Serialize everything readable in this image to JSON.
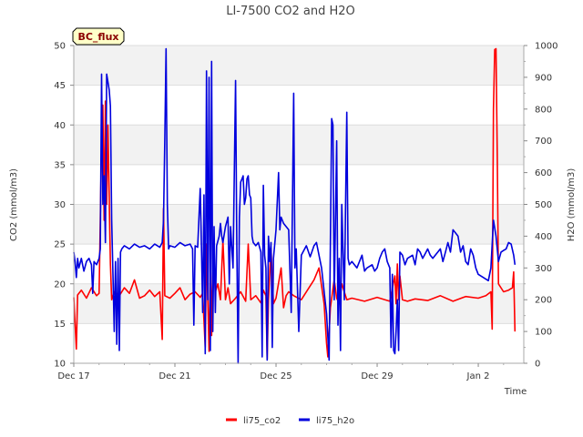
{
  "chart_data": {
    "type": "line",
    "title": "LI-7500 CO2 and H2O",
    "badge": "BC_flux",
    "xlabel": "Time",
    "ylabel_left": "CO2 (mmol/m3)",
    "ylabel_right": "H2O (mmol/m3)",
    "ylim_left": [
      10,
      50
    ],
    "ylim_right": [
      0,
      1000
    ],
    "xlim": [
      0,
      17.8
    ],
    "x_ticks": [
      {
        "value": 0,
        "label": "Dec 17"
      },
      {
        "value": 4,
        "label": "Dec 21"
      },
      {
        "value": 8,
        "label": "Dec 25"
      },
      {
        "value": 12,
        "label": "Dec 29"
      },
      {
        "value": 16,
        "label": "Jan 2"
      }
    ],
    "y_ticks_left": [
      10,
      15,
      20,
      25,
      30,
      35,
      40,
      45,
      50
    ],
    "y_ticks_right": [
      0,
      100,
      200,
      300,
      400,
      500,
      600,
      700,
      800,
      900,
      1000
    ],
    "band_color": "#f2f2f2",
    "series": [
      {
        "name": "li75_co2",
        "axis": "left",
        "color": "#ff0000",
        "points": [
          [
            0.0,
            18.3
          ],
          [
            0.1,
            11.8
          ],
          [
            0.15,
            18.6
          ],
          [
            0.3,
            19.2
          ],
          [
            0.5,
            18.2
          ],
          [
            0.7,
            19.5
          ],
          [
            0.9,
            18.5
          ],
          [
            1.0,
            18.8
          ],
          [
            1.1,
            38.0
          ],
          [
            1.15,
            42.5
          ],
          [
            1.2,
            28.0
          ],
          [
            1.25,
            43.0
          ],
          [
            1.3,
            30.0
          ],
          [
            1.35,
            40.0
          ],
          [
            1.45,
            22.5
          ],
          [
            1.5,
            18.0
          ],
          [
            1.6,
            19.0
          ],
          [
            1.8,
            18.5
          ],
          [
            2.0,
            19.5
          ],
          [
            2.2,
            18.8
          ],
          [
            2.4,
            20.5
          ],
          [
            2.6,
            18.2
          ],
          [
            2.8,
            18.5
          ],
          [
            3.0,
            19.2
          ],
          [
            3.2,
            18.4
          ],
          [
            3.4,
            19.0
          ],
          [
            3.5,
            13.0
          ],
          [
            3.55,
            29.5
          ],
          [
            3.6,
            18.5
          ],
          [
            3.8,
            18.2
          ],
          [
            4.0,
            18.8
          ],
          [
            4.2,
            19.5
          ],
          [
            4.4,
            18.0
          ],
          [
            4.6,
            18.7
          ],
          [
            4.8,
            19.0
          ],
          [
            5.0,
            18.3
          ],
          [
            5.1,
            18.8
          ],
          [
            5.2,
            12.0
          ],
          [
            5.25,
            25.0
          ],
          [
            5.35,
            11.5
          ],
          [
            5.4,
            22.0
          ],
          [
            5.45,
            13.5
          ],
          [
            5.5,
            24.0
          ],
          [
            5.6,
            19.0
          ],
          [
            5.7,
            20.0
          ],
          [
            5.8,
            18.0
          ],
          [
            5.9,
            25.5
          ],
          [
            6.0,
            18.0
          ],
          [
            6.1,
            19.5
          ],
          [
            6.2,
            17.5
          ],
          [
            6.4,
            18.2
          ],
          [
            6.6,
            19.0
          ],
          [
            6.8,
            17.8
          ],
          [
            6.9,
            25.0
          ],
          [
            7.0,
            18.0
          ],
          [
            7.2,
            18.5
          ],
          [
            7.4,
            17.6
          ],
          [
            7.5,
            19.2
          ],
          [
            7.6,
            18.5
          ],
          [
            7.65,
            10.5
          ],
          [
            7.7,
            18.0
          ],
          [
            7.8,
            24.5
          ],
          [
            7.9,
            17.5
          ],
          [
            8.0,
            18.2
          ],
          [
            8.2,
            22.0
          ],
          [
            8.3,
            17.0
          ],
          [
            8.4,
            18.5
          ],
          [
            8.5,
            19.0
          ],
          [
            8.7,
            18.5
          ],
          [
            9.0,
            18.0
          ],
          [
            9.5,
            20.5
          ],
          [
            9.7,
            22.0
          ],
          [
            9.9,
            17.5
          ],
          [
            10.0,
            12.5
          ],
          [
            10.05,
            10.8
          ],
          [
            10.15,
            17.0
          ],
          [
            10.3,
            20.5
          ],
          [
            10.4,
            18.2
          ],
          [
            10.5,
            17.5
          ],
          [
            10.6,
            20.0
          ],
          [
            10.8,
            18.0
          ],
          [
            11.0,
            18.2
          ],
          [
            11.5,
            17.8
          ],
          [
            12.0,
            18.3
          ],
          [
            12.5,
            17.8
          ],
          [
            12.7,
            21.0
          ],
          [
            12.75,
            17.5
          ],
          [
            12.8,
            22.5
          ],
          [
            12.85,
            18.0
          ],
          [
            12.9,
            21.0
          ],
          [
            13.0,
            18.0
          ],
          [
            13.2,
            17.8
          ],
          [
            13.5,
            18.1
          ],
          [
            14.0,
            17.9
          ],
          [
            14.5,
            18.5
          ],
          [
            15.0,
            17.8
          ],
          [
            15.5,
            18.4
          ],
          [
            16.0,
            18.2
          ],
          [
            16.3,
            18.5
          ],
          [
            16.5,
            19.0
          ],
          [
            16.55,
            14.3
          ],
          [
            16.6,
            42.0
          ],
          [
            16.65,
            49.5
          ],
          [
            16.7,
            49.6
          ],
          [
            16.75,
            36.0
          ],
          [
            16.8,
            20.0
          ],
          [
            17.0,
            19.0
          ],
          [
            17.2,
            19.2
          ],
          [
            17.35,
            19.5
          ],
          [
            17.4,
            21.5
          ],
          [
            17.45,
            14.0
          ]
        ]
      },
      {
        "name": "li75_h2o",
        "axis": "right",
        "color": "#0000dd",
        "points": [
          [
            0.0,
            350
          ],
          [
            0.05,
            320
          ],
          [
            0.1,
            270
          ],
          [
            0.15,
            330
          ],
          [
            0.2,
            300
          ],
          [
            0.3,
            330
          ],
          [
            0.4,
            290
          ],
          [
            0.5,
            320
          ],
          [
            0.6,
            330
          ],
          [
            0.7,
            310
          ],
          [
            0.75,
            220
          ],
          [
            0.8,
            320
          ],
          [
            0.9,
            310
          ],
          [
            1.0,
            330
          ],
          [
            1.05,
            360
          ],
          [
            1.1,
            910
          ],
          [
            1.15,
            500
          ],
          [
            1.2,
            590
          ],
          [
            1.25,
            380
          ],
          [
            1.3,
            910
          ],
          [
            1.4,
            860
          ],
          [
            1.45,
            810
          ],
          [
            1.5,
            450
          ],
          [
            1.55,
            280
          ],
          [
            1.6,
            100
          ],
          [
            1.65,
            320
          ],
          [
            1.7,
            60
          ],
          [
            1.75,
            330
          ],
          [
            1.8,
            40
          ],
          [
            1.85,
            350
          ],
          [
            1.9,
            360
          ],
          [
            2.0,
            370
          ],
          [
            2.2,
            360
          ],
          [
            2.4,
            375
          ],
          [
            2.6,
            365
          ],
          [
            2.8,
            370
          ],
          [
            3.0,
            360
          ],
          [
            3.2,
            375
          ],
          [
            3.4,
            365
          ],
          [
            3.5,
            380
          ],
          [
            3.55,
            450
          ],
          [
            3.6,
            700
          ],
          [
            3.65,
            990
          ],
          [
            3.7,
            500
          ],
          [
            3.75,
            360
          ],
          [
            3.8,
            370
          ],
          [
            4.0,
            365
          ],
          [
            4.2,
            380
          ],
          [
            4.4,
            370
          ],
          [
            4.6,
            375
          ],
          [
            4.7,
            360
          ],
          [
            4.75,
            120
          ],
          [
            4.8,
            370
          ],
          [
            4.9,
            365
          ],
          [
            5.0,
            550
          ],
          [
            5.05,
            360
          ],
          [
            5.1,
            160
          ],
          [
            5.15,
            530
          ],
          [
            5.2,
            30
          ],
          [
            5.25,
            920
          ],
          [
            5.3,
            200
          ],
          [
            5.35,
            900
          ],
          [
            5.4,
            40
          ],
          [
            5.45,
            950
          ],
          [
            5.5,
            100
          ],
          [
            5.55,
            430
          ],
          [
            5.6,
            160
          ],
          [
            5.65,
            370
          ],
          [
            5.75,
            400
          ],
          [
            5.8,
            440
          ],
          [
            5.85,
            400
          ],
          [
            5.9,
            380
          ],
          [
            6.0,
            430
          ],
          [
            6.1,
            460
          ],
          [
            6.15,
            250
          ],
          [
            6.2,
            430
          ],
          [
            6.3,
            300
          ],
          [
            6.4,
            890
          ],
          [
            6.45,
            360
          ],
          [
            6.5,
            0
          ],
          [
            6.55,
            460
          ],
          [
            6.6,
            570
          ],
          [
            6.65,
            580
          ],
          [
            6.7,
            590
          ],
          [
            6.75,
            500
          ],
          [
            6.8,
            520
          ],
          [
            6.85,
            580
          ],
          [
            6.9,
            590
          ],
          [
            6.95,
            530
          ],
          [
            7.0,
            520
          ],
          [
            7.05,
            400
          ],
          [
            7.1,
            380
          ],
          [
            7.2,
            370
          ],
          [
            7.3,
            380
          ],
          [
            7.4,
            350
          ],
          [
            7.45,
            20
          ],
          [
            7.5,
            560
          ],
          [
            7.55,
            340
          ],
          [
            7.6,
            300
          ],
          [
            7.65,
            10
          ],
          [
            7.7,
            400
          ],
          [
            7.75,
            320
          ],
          [
            7.8,
            380
          ],
          [
            7.85,
            50
          ],
          [
            7.9,
            330
          ],
          [
            8.0,
            420
          ],
          [
            8.1,
            600
          ],
          [
            8.15,
            420
          ],
          [
            8.2,
            460
          ],
          [
            8.3,
            440
          ],
          [
            8.4,
            430
          ],
          [
            8.5,
            420
          ],
          [
            8.6,
            160
          ],
          [
            8.7,
            850
          ],
          [
            8.75,
            300
          ],
          [
            8.8,
            360
          ],
          [
            8.9,
            100
          ],
          [
            9.0,
            340
          ],
          [
            9.2,
            370
          ],
          [
            9.35,
            335
          ],
          [
            9.5,
            370
          ],
          [
            9.6,
            380
          ],
          [
            9.8,
            300
          ],
          [
            10.0,
            155
          ],
          [
            10.1,
            10
          ],
          [
            10.15,
            380
          ],
          [
            10.2,
            770
          ],
          [
            10.25,
            750
          ],
          [
            10.3,
            200
          ],
          [
            10.4,
            700
          ],
          [
            10.45,
            120
          ],
          [
            10.5,
            330
          ],
          [
            10.55,
            40
          ],
          [
            10.6,
            500
          ],
          [
            10.7,
            200
          ],
          [
            10.8,
            790
          ],
          [
            10.85,
            330
          ],
          [
            10.9,
            310
          ],
          [
            11.0,
            320
          ],
          [
            11.2,
            300
          ],
          [
            11.4,
            340
          ],
          [
            11.5,
            290
          ],
          [
            11.6,
            300
          ],
          [
            11.8,
            310
          ],
          [
            11.9,
            290
          ],
          [
            12.0,
            300
          ],
          [
            12.1,
            330
          ],
          [
            12.2,
            350
          ],
          [
            12.3,
            360
          ],
          [
            12.4,
            320
          ],
          [
            12.5,
            300
          ],
          [
            12.55,
            50
          ],
          [
            12.6,
            280
          ],
          [
            12.65,
            40
          ],
          [
            12.7,
            30
          ],
          [
            12.75,
            100
          ],
          [
            12.8,
            200
          ],
          [
            12.85,
            40
          ],
          [
            12.9,
            350
          ],
          [
            13.0,
            340
          ],
          [
            13.1,
            310
          ],
          [
            13.2,
            330
          ],
          [
            13.4,
            340
          ],
          [
            13.5,
            310
          ],
          [
            13.6,
            360
          ],
          [
            13.7,
            350
          ],
          [
            13.8,
            330
          ],
          [
            13.9,
            345
          ],
          [
            14.0,
            360
          ],
          [
            14.1,
            340
          ],
          [
            14.2,
            330
          ],
          [
            14.4,
            350
          ],
          [
            14.5,
            360
          ],
          [
            14.6,
            320
          ],
          [
            14.7,
            350
          ],
          [
            14.8,
            380
          ],
          [
            14.9,
            350
          ],
          [
            15.0,
            420
          ],
          [
            15.1,
            410
          ],
          [
            15.2,
            400
          ],
          [
            15.3,
            350
          ],
          [
            15.4,
            370
          ],
          [
            15.5,
            320
          ],
          [
            15.6,
            310
          ],
          [
            15.7,
            360
          ],
          [
            15.8,
            340
          ],
          [
            15.9,
            300
          ],
          [
            16.0,
            280
          ],
          [
            16.2,
            270
          ],
          [
            16.4,
            260
          ],
          [
            16.5,
            300
          ],
          [
            16.6,
            450
          ],
          [
            16.7,
            400
          ],
          [
            16.8,
            320
          ],
          [
            16.9,
            350
          ],
          [
            17.0,
            355
          ],
          [
            17.1,
            360
          ],
          [
            17.2,
            380
          ],
          [
            17.3,
            375
          ],
          [
            17.4,
            340
          ],
          [
            17.45,
            310
          ]
        ]
      }
    ],
    "legend": [
      {
        "name": "li75_co2",
        "color": "#ff0000"
      },
      {
        "name": "li75_h2o",
        "color": "#0000dd"
      }
    ],
    "legend_position": "bottom-center"
  }
}
